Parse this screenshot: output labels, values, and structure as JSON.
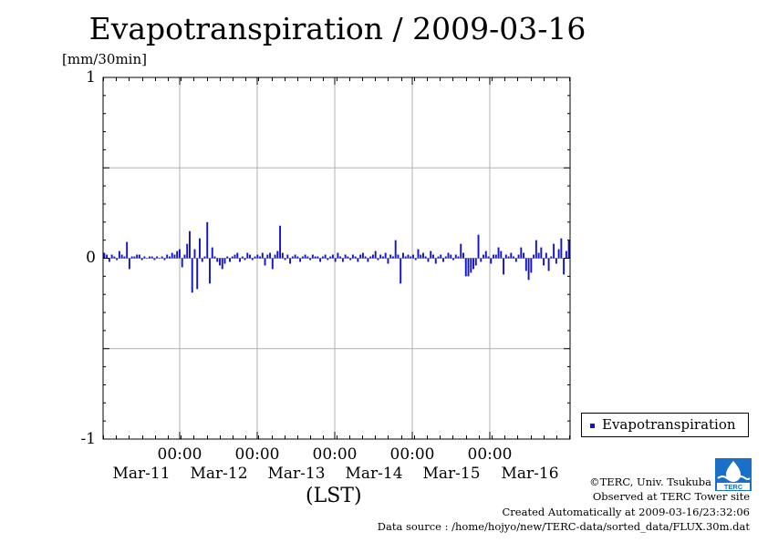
{
  "chart_data": {
    "type": "bar",
    "title": "Evapotranspiration / 2009-03-16",
    "ylabel": "[mm/30min]",
    "xlabel": "(LST)",
    "ylim": [
      -1,
      1
    ],
    "y_ticks": [
      "1",
      "0",
      "-1"
    ],
    "x_ticks": [
      {
        "time": "00:00",
        "date": "Mar-11"
      },
      {
        "time": "00:00",
        "date": "Mar-12"
      },
      {
        "time": "00:00",
        "date": "Mar-13"
      },
      {
        "time": "00:00",
        "date": "Mar-14"
      },
      {
        "time": "00:00",
        "date": "Mar-15"
      },
      {
        "time": "00:00",
        "date": "Mar-16"
      }
    ],
    "grid": true,
    "legend_position": "bottom-right",
    "series": [
      {
        "name": "Evapotranspiration",
        "color": "#1515c8",
        "values": [
          0.03,
          0.02,
          -0.02,
          0.02,
          0.01,
          -0.01,
          0.04,
          0.02,
          0.01,
          0.09,
          -0.06,
          0.01,
          0.01,
          0.02,
          0.02,
          -0.01,
          0.01,
          0.0,
          0.01,
          0.01,
          -0.01,
          0.01,
          0.0,
          0.01,
          -0.01,
          0.02,
          0.01,
          0.03,
          0.02,
          0.04,
          0.05,
          -0.05,
          0.02,
          0.08,
          0.15,
          -0.19,
          0.05,
          -0.17,
          0.11,
          -0.02,
          0.01,
          0.2,
          -0.14,
          0.06,
          0.01,
          -0.02,
          -0.04,
          -0.06,
          -0.03,
          0.01,
          -0.02,
          0.01,
          0.02,
          0.03,
          -0.02,
          0.01,
          -0.01,
          0.03,
          0.02,
          -0.01,
          0.01,
          0.02,
          0.01,
          0.03,
          -0.04,
          0.02,
          0.03,
          -0.06,
          0.02,
          0.04,
          0.18,
          0.03,
          -0.01,
          0.02,
          -0.03,
          0.01,
          0.02,
          0.01,
          -0.02,
          0.01,
          0.02,
          0.01,
          -0.01,
          0.02,
          0.01,
          0.01,
          -0.02,
          0.01,
          0.02,
          -0.01,
          0.01,
          0.02,
          -0.02,
          0.03,
          0.01,
          -0.02,
          0.02,
          0.01,
          -0.01,
          0.02,
          0.01,
          -0.02,
          0.02,
          0.03,
          0.01,
          -0.02,
          0.01,
          0.02,
          0.04,
          -0.01,
          0.02,
          0.01,
          0.03,
          -0.03,
          0.02,
          0.01,
          0.1,
          0.02,
          -0.14,
          0.03,
          0.01,
          0.02,
          0.01,
          0.02,
          -0.01,
          0.05,
          0.02,
          0.03,
          0.01,
          -0.02,
          0.04,
          0.02,
          -0.03,
          0.01,
          0.02,
          -0.02,
          0.01,
          0.03,
          0.02,
          -0.01,
          0.02,
          0.01,
          0.08,
          0.03,
          -0.1,
          -0.1,
          -0.08,
          -0.06,
          -0.04,
          0.13,
          -0.02,
          0.02,
          0.04,
          0.01,
          -0.03,
          0.02,
          0.02,
          0.06,
          0.04,
          -0.09,
          0.02,
          0.01,
          0.03,
          0.01,
          -0.02,
          0.02,
          0.06,
          0.03,
          -0.07,
          -0.12,
          -0.08,
          0.02,
          0.1,
          0.03,
          0.06,
          -0.04,
          0.03,
          -0.07,
          0.01,
          0.08,
          -0.03,
          0.05,
          0.11,
          -0.09,
          0.04,
          0.1
        ]
      }
    ]
  },
  "legend": {
    "label": "Evapotranspiration"
  },
  "footer": {
    "copyright": "©TERC, Univ. Tsukuba",
    "observed": "Observed at TERC Tower site",
    "created": "Created Automatically at 2009-03-16/23:32:06",
    "source": "Data source : /home/hojyo/new/TERC-data/sorted_data/FLUX.30m.dat"
  },
  "logo": {
    "name": "terc-logo",
    "text": "TERC"
  }
}
